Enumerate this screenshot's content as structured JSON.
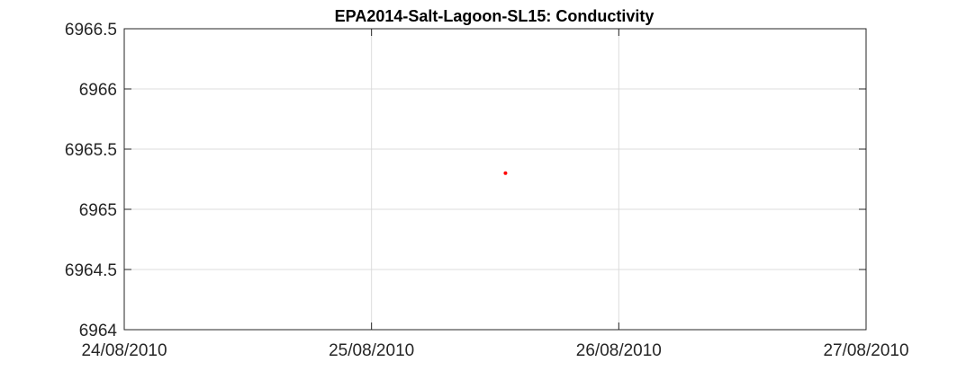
{
  "chart_data": {
    "type": "scatter",
    "title": "EPA2014-Salt-Lagoon-SL15: Conductivity",
    "xlabel": "",
    "ylabel": "",
    "x_ticks": [
      "24/08/2010",
      "25/08/2010",
      "26/08/2010",
      "27/08/2010"
    ],
    "y_ticks": [
      "6964",
      "6964.5",
      "6965",
      "6965.5",
      "6966",
      "6966.5"
    ],
    "xlim": [
      "24/08/2010",
      "27/08/2010"
    ],
    "ylim": [
      6964,
      6966.5
    ],
    "grid": true,
    "series": [
      {
        "color": "#ff0000",
        "points": [
          {
            "x": "25/08/2010 13:00",
            "y": 6965.3
          }
        ]
      }
    ]
  }
}
